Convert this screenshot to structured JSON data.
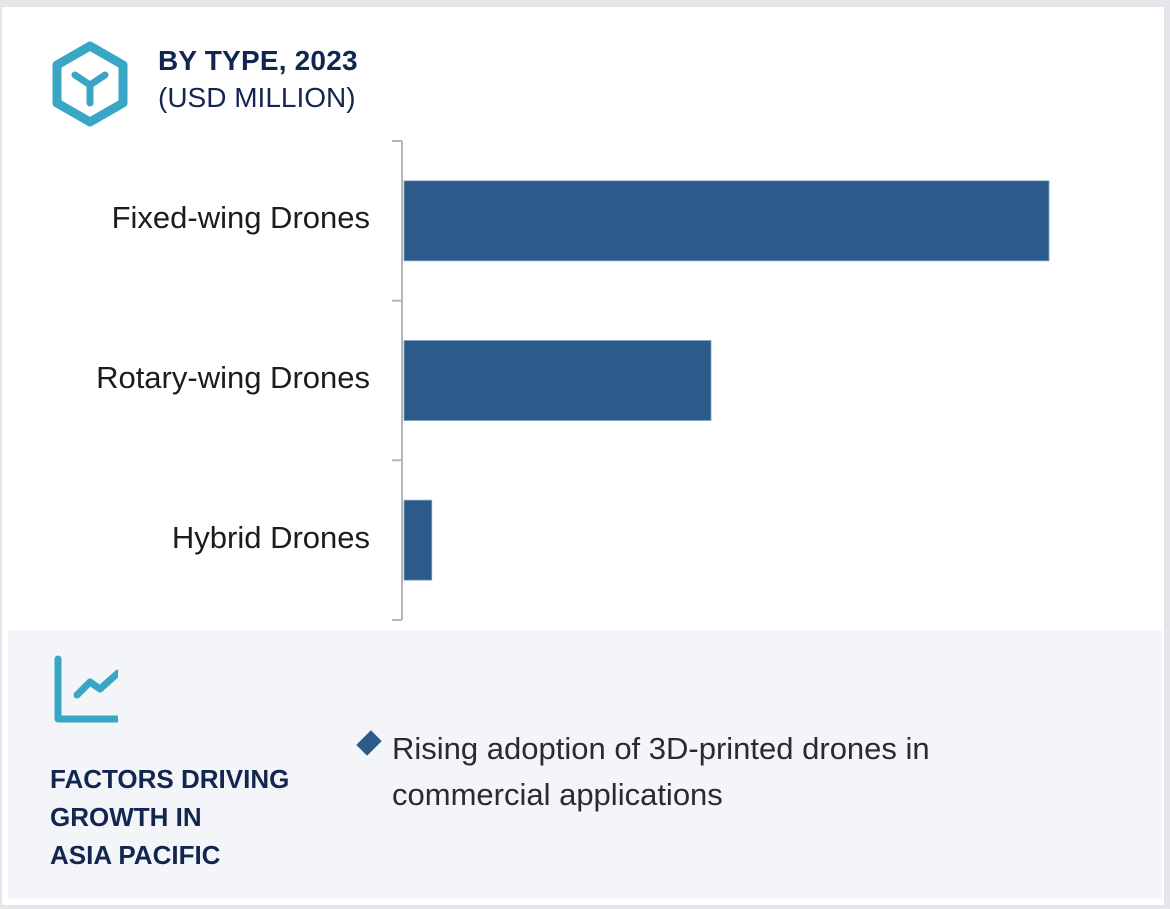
{
  "header": {
    "icon": "hexagon-y-icon",
    "title": "BY TYPE, 2023",
    "subtitle": "(USD MILLION)"
  },
  "chart_data": {
    "type": "bar",
    "orientation": "horizontal",
    "title": "BY TYPE, 2023",
    "subtitle": "(USD MILLION)",
    "categories": [
      "Fixed-wing Drones",
      "Rotary-wing Drones",
      "Hybrid Drones"
    ],
    "values": [
      100,
      47.6,
      4.3
    ],
    "value_note": "relative bar lengths (% of largest); no numeric axis shown",
    "xlabel": "",
    "ylabel": "",
    "xlim": [
      0,
      100
    ],
    "grid": false,
    "legend": "none",
    "bar_color": "#2c5a8a"
  },
  "factors": {
    "icon": "line-chart-icon",
    "title_lines": [
      "FACTORS DRIVING",
      "GROWTH IN",
      "ASIA PACIFIC"
    ],
    "bullets": [
      "Rising adoption of 3D-printed drones in commercial applications"
    ]
  },
  "colors": {
    "accent": "#3aa6c6",
    "navy": "#13264f",
    "bar": "#2c5a8a",
    "panel": "#f3f5f9"
  }
}
